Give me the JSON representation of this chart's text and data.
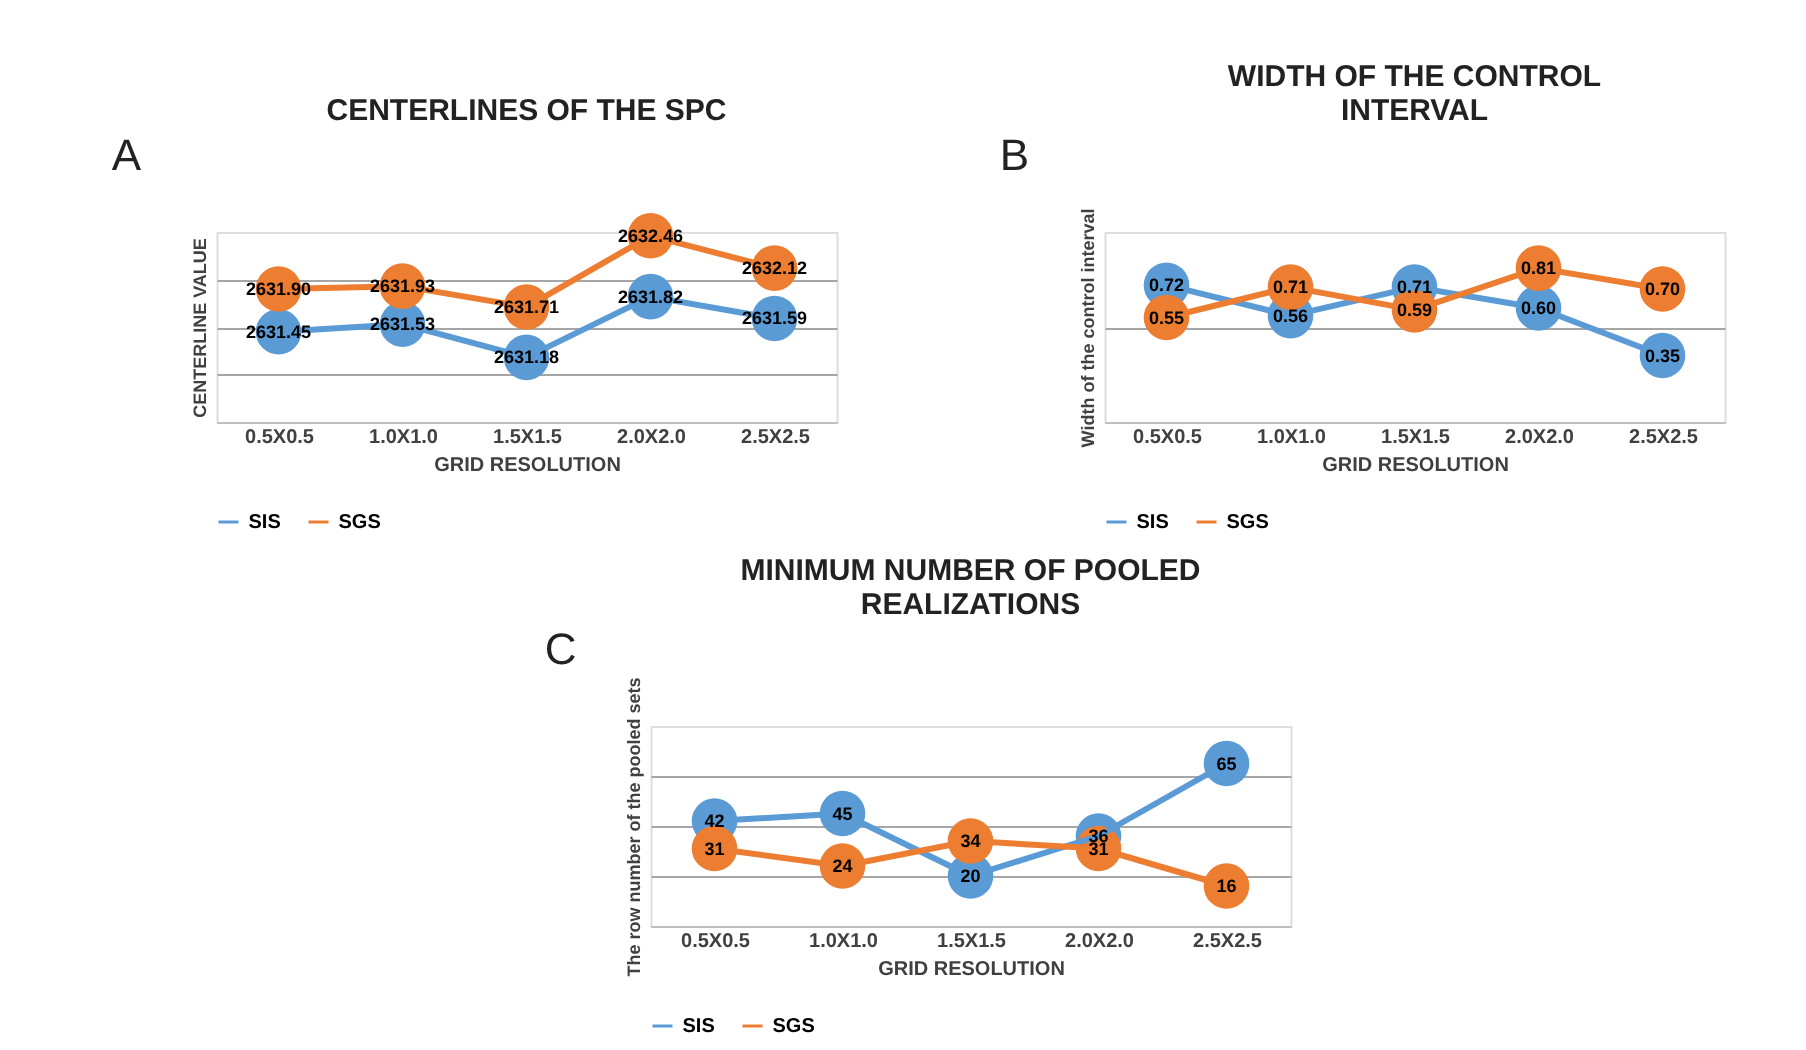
{
  "chart_data": [
    {
      "type": "line",
      "title": "CENTERLINES OF THE SPC",
      "xlabel": "GRID RESOLUTION",
      "ylabel": "CENTERLINE VALUE",
      "annotations": [
        "A"
      ],
      "categories": [
        "0.5X0.5",
        "1.0X1.0",
        "1.5X1.5",
        "2.0X2.0",
        "2.5X2.5"
      ],
      "series": [
        {
          "name": "SIS",
          "color": "#5b9bd5",
          "values": [
            2631.45,
            2631.53,
            2631.18,
            2631.82,
            2631.59
          ]
        },
        {
          "name": "SGS",
          "color": "#ed7d31",
          "values": [
            2631.9,
            2631.93,
            2631.71,
            2632.46,
            2632.12
          ],
          "value_labels": [
            "2631.90",
            "2631.93",
            "2631.71",
            "2632.46",
            "2632.12"
          ]
        }
      ],
      "ylim": [
        2630.5,
        2632.5
      ],
      "yticks": [
        {
          "value": 2631,
          "label": null
        },
        {
          "value": 2631.5,
          "label": null
        },
        {
          "value": 2632,
          "label": null
        }
      ],
      "tick_labels": "x",
      "grid": "y",
      "legend": "bottom",
      "marker": "circle",
      "data_labels": true
    },
    {
      "type": "line",
      "title": "WIDTH OF THE CONTROL INTERVAL",
      "xlabel": "GRID RESOLUTION",
      "ylabel": "Width of the control interval",
      "annotations": [
        "B"
      ],
      "categories": [
        "0.5X0.5",
        "1.0X1.0",
        "1.5X1.5",
        "2.0X2.0",
        "2.5X2.5"
      ],
      "series": [
        {
          "name": "SIS",
          "color": "#5b9bd5",
          "values": [
            0.72,
            0.56,
            0.71,
            0.6,
            0.35
          ],
          "value_labels": [
            "0.72",
            "0.56",
            "0.71",
            "0.60",
            "0.35"
          ]
        },
        {
          "name": "SGS",
          "color": "#ed7d31",
          "values": [
            0.55,
            0.71,
            0.59,
            0.81,
            0.7
          ],
          "value_labels": [
            "0.55",
            "0.71",
            "0.59",
            "0.81",
            "0.70"
          ]
        }
      ],
      "ylim": [
        0,
        1
      ],
      "yticks": [
        {
          "value": 0.5,
          "label": null
        }
      ],
      "tick_labels": "x",
      "grid": "y",
      "legend": "bottom",
      "marker": "circle",
      "data_labels": true
    },
    {
      "type": "line",
      "title": "MINIMUM NUMBER OF POOLED REALIZATIONS",
      "xlabel": "GRID RESOLUTION",
      "ylabel": "The row number of the pooled sets",
      "annotations": [
        "C"
      ],
      "categories": [
        "0.5X0.5",
        "1.0X1.0",
        "1.5X1.5",
        "2.0X2.0",
        "2.5X2.5"
      ],
      "series": [
        {
          "name": "SIS",
          "color": "#5b9bd5",
          "values": [
            42,
            45,
            20,
            36,
            65
          ]
        },
        {
          "name": "SGS",
          "color": "#ed7d31",
          "values": [
            31,
            24,
            34,
            31,
            16
          ]
        }
      ],
      "ylim": [
        0,
        80
      ],
      "yticks": [
        {
          "value": 20,
          "label": null
        },
        {
          "value": 40,
          "label": null
        },
        {
          "value": 60,
          "label": null
        }
      ],
      "tick_labels": "x",
      "grid": "y",
      "legend": "bottom",
      "marker": "circle",
      "data_labels": true
    }
  ]
}
